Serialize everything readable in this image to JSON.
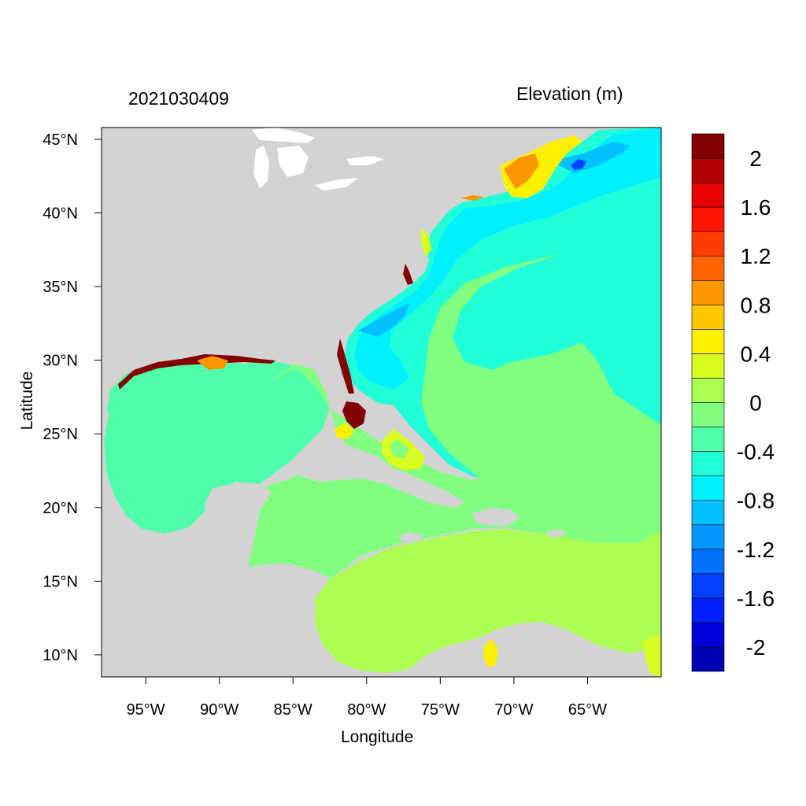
{
  "header": {
    "left_title": "2021030409",
    "right_title": "Elevation (m)"
  },
  "axes": {
    "xlabel": "Longitude",
    "ylabel": "Latitude",
    "x_ticks": [
      {
        "lon": -95,
        "label": "95°W"
      },
      {
        "lon": -90,
        "label": "90°W"
      },
      {
        "lon": -85,
        "label": "85°W"
      },
      {
        "lon": -80,
        "label": "80°W"
      },
      {
        "lon": -75,
        "label": "75°W"
      },
      {
        "lon": -70,
        "label": "70°W"
      },
      {
        "lon": -65,
        "label": "65°W"
      }
    ],
    "y_ticks": [
      {
        "lat": 45,
        "label": "45°N"
      },
      {
        "lat": 40,
        "label": "40°N"
      },
      {
        "lat": 35,
        "label": "35°N"
      },
      {
        "lat": 30,
        "label": "30°N"
      },
      {
        "lat": 25,
        "label": "25°N"
      },
      {
        "lat": 20,
        "label": "20°N"
      },
      {
        "lat": 15,
        "label": "15°N"
      },
      {
        "lat": 10,
        "label": "10°N"
      }
    ],
    "lon_range": [
      -98.0,
      -60.0
    ],
    "lat_range": [
      8.5,
      45.8
    ]
  },
  "colorbar": {
    "colors": [
      "#0000b4",
      "#0000d8",
      "#0020ff",
      "#0040ff",
      "#0070ff",
      "#0098ff",
      "#00c0ff",
      "#00f0ff",
      "#20ffd8",
      "#50ffaa",
      "#80ff80",
      "#aaff50",
      "#d8ff20",
      "#fff000",
      "#ffc800",
      "#ff9600",
      "#ff6400",
      "#ff3c00",
      "#ff1400",
      "#e60000",
      "#b40000",
      "#820000"
    ],
    "labels": [
      {
        "value": 2,
        "text": "2"
      },
      {
        "value": 1.6,
        "text": "1.6"
      },
      {
        "value": 1.2,
        "text": "1.2"
      },
      {
        "value": 0.8,
        "text": "0.8"
      },
      {
        "value": 0.4,
        "text": "0.4"
      },
      {
        "value": 0,
        "text": "0"
      },
      {
        "value": -0.4,
        "text": "-0.4"
      },
      {
        "value": -0.8,
        "text": "-0.8"
      },
      {
        "value": -1.2,
        "text": "-1.2"
      },
      {
        "value": -1.6,
        "text": "-1.6"
      },
      {
        "value": -2,
        "text": "-2"
      }
    ]
  },
  "colors": {
    "land": "#d3d3d3",
    "lakes": "#ffffff",
    "gulf": "#50ffaa",
    "atlantic": "#20ffd8",
    "caribbean_west": "#80ff80",
    "caribbean_south": "#aaff50",
    "coastal_low": "#00f0ff",
    "surge_high": "#820000"
  }
}
